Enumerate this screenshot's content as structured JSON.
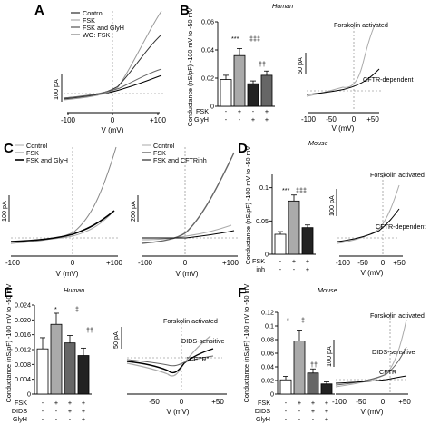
{
  "figure": {
    "panels": {
      "A": {
        "label": "A",
        "legend": [
          "Control",
          "FSK",
          "FSK and GlyH",
          "WO: FSK"
        ],
        "scale": "100 pA",
        "xlabel": "V (mV)",
        "xticks": [
          "-100",
          "0",
          "+100"
        ]
      },
      "B": {
        "label": "B",
        "title": "Human",
        "ylabel": "Conductance (nS/pF) -100 mV to -50 mV",
        "yticks": [
          "0",
          "0.02",
          "0.04",
          "0.06"
        ],
        "sig": [
          "***",
          "‡‡‡",
          "††"
        ],
        "row_labels": [
          "FSK",
          "GlyH"
        ],
        "row_marks": [
          [
            "-",
            "+",
            "-",
            "+"
          ],
          [
            "-",
            "-",
            "+",
            "+"
          ]
        ],
        "trace_labels": [
          "Forskolin activated",
          "CFTR-dependent"
        ],
        "scale": "50 pA",
        "xlabel": "V (mV)",
        "xticks": [
          "-100",
          "-50",
          "0",
          "+50"
        ]
      },
      "C": {
        "label": "C",
        "legend1": [
          "Control",
          "FSK",
          "FSK and GlyH"
        ],
        "legend2": [
          "Control",
          "FSK",
          "FSK and CFTRinh"
        ],
        "scale1": "100 pA",
        "scale2": "200 pA",
        "xlabel": "V (mV)",
        "xticks": [
          "-100",
          "0",
          "+100"
        ]
      },
      "D": {
        "label": "D",
        "title": "Mouse",
        "ylabel": "Conductance (nS/pF) -100 mV to -50 mV",
        "yticks": [
          "0",
          "0.05",
          "0.1"
        ],
        "sig": [
          "***",
          "‡‡‡"
        ],
        "row_labels": [
          "FSK",
          "inh"
        ],
        "row_marks": [
          [
            "-",
            "+",
            "+"
          ],
          [
            "-",
            "-",
            "+"
          ]
        ],
        "trace_labels": [
          "Forskolin activated",
          "CFTR-dependent"
        ],
        "scale": "100 pA",
        "xlabel": "V (mV)",
        "xticks": [
          "-100",
          "-50",
          "0",
          "+50"
        ]
      },
      "E": {
        "label": "E",
        "title": "Human",
        "ylabel": "Conductance (nS/pF) -100 mV to -50 mV",
        "yticks": [
          "0",
          "0.004",
          "0.008",
          "0.012",
          "0.016",
          "0.020",
          "0.024"
        ],
        "sig": [
          "*",
          "‡",
          "††"
        ],
        "row_labels": [
          "FSK",
          "DIDS",
          "GlyH"
        ],
        "row_marks": [
          [
            "-",
            "+",
            "+",
            "+"
          ],
          [
            "-",
            "-",
            "+",
            "+"
          ],
          [
            "-",
            "-",
            "-",
            "+"
          ]
        ],
        "trace_labels": [
          "Forskolin activated",
          "DIDS-sensitive",
          "\"CFTR\""
        ],
        "scale": "50 pA",
        "xlabel": "V (mV)",
        "xticks": [
          "-50",
          "0",
          "+50"
        ]
      },
      "F": {
        "label": "F",
        "title": "Mouse",
        "ylabel": "Conductance (nS/pF) -100 mV to -50 mV",
        "yticks": [
          "0",
          "0.02",
          "0.04",
          "0.06",
          "0.08",
          "0.1",
          "0.12"
        ],
        "sig": [
          "*",
          "‡",
          "††"
        ],
        "row_labels": [
          "FSK",
          "DIDS",
          "GlyH"
        ],
        "row_marks": [
          [
            "-",
            "+",
            "+",
            "+"
          ],
          [
            "-",
            "-",
            "+",
            "+"
          ],
          [
            "-",
            "-",
            "-",
            "+"
          ]
        ],
        "trace_labels": [
          "Forskolin activated",
          "DIDS-sensitive",
          "CFTR"
        ],
        "scale": "100 pA",
        "xlabel": "V (mV)",
        "xticks": [
          "-100",
          "-50",
          "0",
          "+50"
        ]
      }
    }
  },
  "chart_data": [
    {
      "type": "bar",
      "panel": "B",
      "categories": [
        "Control",
        "FSK",
        "GlyH",
        "FSK+GlyH"
      ],
      "values": [
        0.019,
        0.036,
        0.016,
        0.022
      ],
      "errors": [
        0.003,
        0.005,
        0.002,
        0.003
      ],
      "colors": [
        "#ffffff",
        "#aaaaaa",
        "#222222",
        "#666666"
      ],
      "ylim": [
        0,
        0.06
      ],
      "ylabel": "Conductance (nS/pF) -100 mV to -50 mV"
    },
    {
      "type": "bar",
      "panel": "D",
      "categories": [
        "Control",
        "FSK",
        "FSK+inh"
      ],
      "values": [
        0.03,
        0.08,
        0.04
      ],
      "errors": [
        0.004,
        0.009,
        0.004
      ],
      "colors": [
        "#ffffff",
        "#aaaaaa",
        "#222222"
      ],
      "ylim": [
        0,
        0.12
      ],
      "ylabel": "Conductance (nS/pF) -100 mV to -50 mV"
    },
    {
      "type": "bar",
      "panel": "E",
      "categories": [
        "Control",
        "FSK",
        "FSK+DIDS",
        "FSK+DIDS+GlyH"
      ],
      "values": [
        0.0122,
        0.0188,
        0.0138,
        0.0104
      ],
      "errors": [
        0.003,
        0.003,
        0.002,
        0.002
      ],
      "colors": [
        "#ffffff",
        "#aaaaaa",
        "#666666",
        "#222222"
      ],
      "ylim": [
        0,
        0.024
      ],
      "ylabel": "Conductance (nS/pF) -100 mV to -50 mV"
    },
    {
      "type": "bar",
      "panel": "F",
      "categories": [
        "Control",
        "FSK",
        "FSK+DIDS",
        "FSK+DIDS+GlyH"
      ],
      "values": [
        0.021,
        0.078,
        0.031,
        0.015
      ],
      "errors": [
        0.005,
        0.016,
        0.006,
        0.003
      ],
      "colors": [
        "#ffffff",
        "#aaaaaa",
        "#666666",
        "#222222"
      ],
      "ylim": [
        0,
        0.12
      ],
      "ylabel": "Conductance (nS/pF) -100 mV to -50 mV"
    }
  ]
}
